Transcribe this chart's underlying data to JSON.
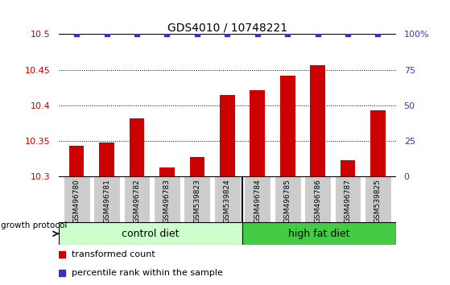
{
  "title": "GDS4010 / 10748221",
  "samples": [
    "GSM496780",
    "GSM496781",
    "GSM496782",
    "GSM496783",
    "GSM539823",
    "GSM539824",
    "GSM496784",
    "GSM496785",
    "GSM496786",
    "GSM496787",
    "GSM539825"
  ],
  "bar_values": [
    10.343,
    10.348,
    10.382,
    10.313,
    10.328,
    10.415,
    10.422,
    10.442,
    10.457,
    10.323,
    10.393
  ],
  "percentile_values": [
    100,
    100,
    100,
    100,
    100,
    100,
    100,
    100,
    100,
    100,
    100
  ],
  "bar_color": "#cc0000",
  "percentile_color": "#3333cc",
  "ylim_left": [
    10.3,
    10.5
  ],
  "ylim_right": [
    0,
    100
  ],
  "yticks_left": [
    10.3,
    10.35,
    10.4,
    10.45,
    10.5
  ],
  "yticks_right": [
    0,
    25,
    50,
    75,
    100
  ],
  "ytick_labels_left": [
    "10.3",
    "10.35",
    "10.4",
    "10.45",
    "10.5"
  ],
  "ytick_labels_right": [
    "0",
    "25",
    "50",
    "75",
    "100%"
  ],
  "control_diet_count": 6,
  "high_fat_diet_count": 5,
  "control_diet_label": "control diet",
  "high_fat_diet_label": "high fat diet",
  "growth_protocol_label": "growth protocol",
  "legend_bar_label": "transformed count",
  "legend_pct_label": "percentile rank within the sample",
  "control_diet_color": "#ccffcc",
  "high_fat_diet_color": "#44cc44",
  "left_axis_color": "#cc0000",
  "right_axis_color": "#3333cc",
  "tick_label_bg": "#cccccc",
  "bar_bottom": 10.3,
  "grid_color": "#000000",
  "bar_width": 0.5
}
